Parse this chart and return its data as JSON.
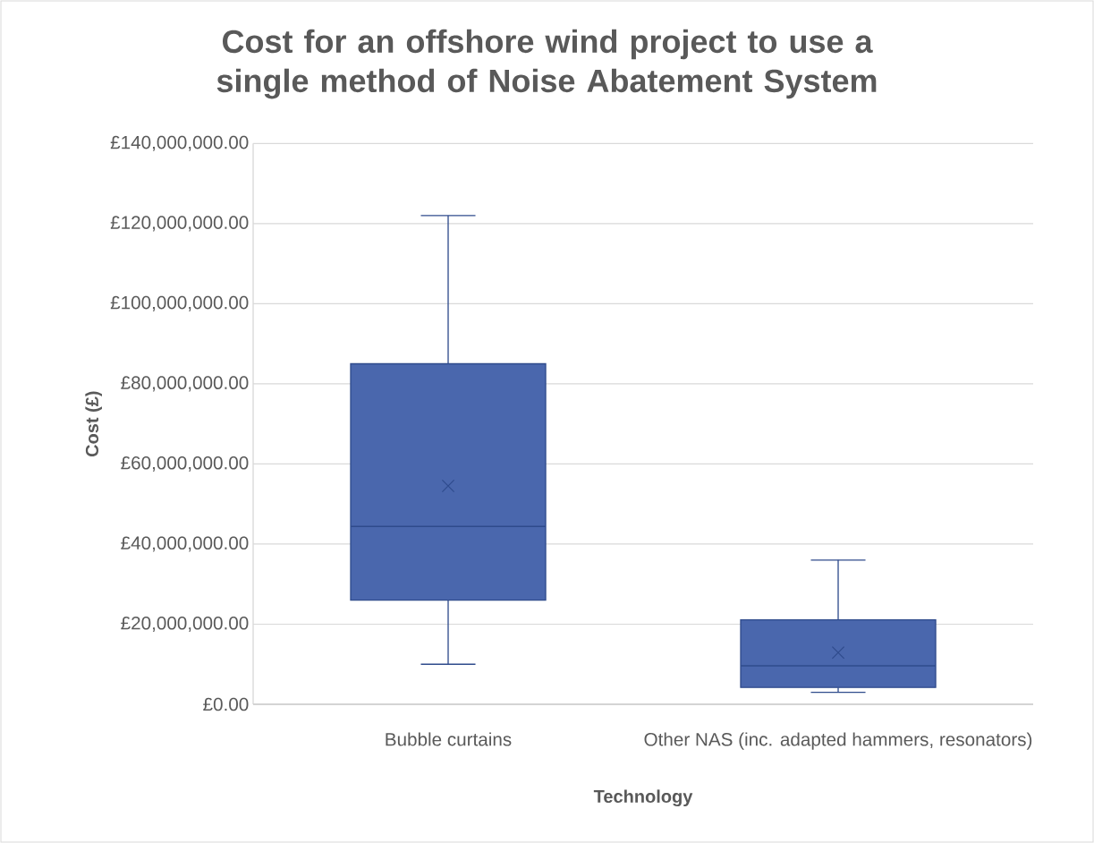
{
  "chart_data": {
    "type": "box",
    "title": "Cost for an offshore wind project to use a single method of Noise Abatement System",
    "xlabel": "Technology",
    "ylabel": "Cost (£)",
    "categories": [
      "Bubble curtains",
      "Other NAS (inc. adapted hammers, resonators)"
    ],
    "color": "#4a67ad",
    "boxes": [
      {
        "low": 10000000,
        "q1": 26000000,
        "median": 44400000,
        "q3": 85000000,
        "high": 122000000,
        "mean": 54500000
      },
      {
        "low": 3000000,
        "q1": 4200000,
        "median": 9600000,
        "q3": 21100000,
        "high": 36000000,
        "mean": 12900000
      }
    ],
    "ylim": [
      0,
      140000000
    ],
    "yticks": [
      {
        "value": 0,
        "label": "£0.00"
      },
      {
        "value": 20000000,
        "label": "£20,000,000.00"
      },
      {
        "value": 40000000,
        "label": "£40,000,000.00"
      },
      {
        "value": 60000000,
        "label": "£60,000,000.00"
      },
      {
        "value": 80000000,
        "label": "£80,000,000.00"
      },
      {
        "value": 100000000,
        "label": "£100,000,000.00"
      },
      {
        "value": 120000000,
        "label": "£120,000,000.00"
      },
      {
        "value": 140000000,
        "label": "£140,000,000.00"
      }
    ],
    "grid": "y"
  }
}
